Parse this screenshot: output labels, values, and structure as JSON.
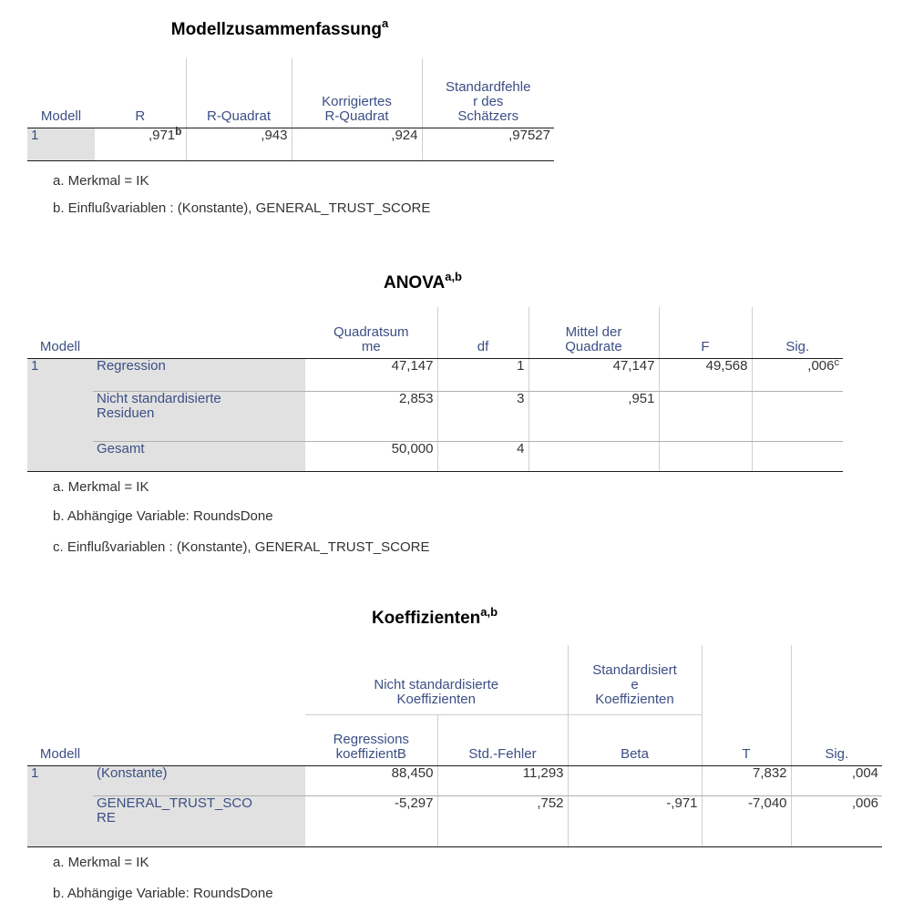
{
  "model_summary": {
    "title": "Modellzusammenfassung",
    "title_sup": "a",
    "headers": {
      "modell": "Modell",
      "r": "R",
      "r_quadrat": "R-Quadrat",
      "korr_1": "Korrigiertes",
      "korr_2": "R-Quadrat",
      "std_1": "Standardfehle",
      "std_2": "r des",
      "std_3": "Schätzers"
    },
    "row": {
      "modell": "1",
      "r": ",971",
      "r_sup": "b",
      "r_quadrat": ",943",
      "korr": ",924",
      "std": ",97527"
    },
    "footnotes": [
      "a. Merkmal = IK",
      "b. Einflußvariablen : (Konstante), GENERAL_TRUST_SCORE"
    ]
  },
  "anova": {
    "title": "ANOVA",
    "title_sup": "a,b",
    "headers": {
      "modell": "Modell",
      "qs_1": "Quadratsum",
      "qs_2": "me",
      "df": "df",
      "mq_1": "Mittel der",
      "mq_2": "Quadrate",
      "f": "F",
      "sig": "Sig."
    },
    "modell": "1",
    "rows": [
      {
        "label": "Regression",
        "qs": "47,147",
        "df": "1",
        "mq": "47,147",
        "f": "49,568",
        "sig": ",006",
        "sig_sup": "c"
      },
      {
        "label_1": "Nicht standardisierte",
        "label_2": "Residuen",
        "qs": "2,853",
        "df": "3",
        "mq": ",951"
      },
      {
        "label": "Gesamt",
        "qs": "50,000",
        "df": "4"
      }
    ],
    "footnotes": [
      "a. Merkmal = IK",
      "b. Abhängige Variable: RoundsDone",
      "c. Einflußvariablen : (Konstante), GENERAL_TRUST_SCORE"
    ]
  },
  "coefficients": {
    "title": "Koeffizienten",
    "title_sup": "a,b",
    "headers": {
      "modell": "Modell",
      "group_1": "Nicht standardisierte",
      "group_2": "Koeffizienten",
      "std_1": "Standardisiert",
      "std_2": "e",
      "std_3": "Koeffizienten",
      "b_1": "Regressions",
      "b_2": "koeffizientB",
      "se": "Std.-Fehler",
      "beta": "Beta",
      "t": "T",
      "sig": "Sig."
    },
    "modell": "1",
    "rows": [
      {
        "label": "(Konstante)",
        "b": "88,450",
        "se": "11,293",
        "t": "7,832",
        "sig": ",004"
      },
      {
        "label_1": "GENERAL_TRUST_SCO",
        "label_2": "RE",
        "b": "-5,297",
        "se": ",752",
        "beta": "-,971",
        "t": "-7,040",
        "sig": ",006"
      }
    ],
    "footnotes": [
      "a. Merkmal = IK",
      "b. Abhängige Variable: RoundsDone"
    ]
  }
}
